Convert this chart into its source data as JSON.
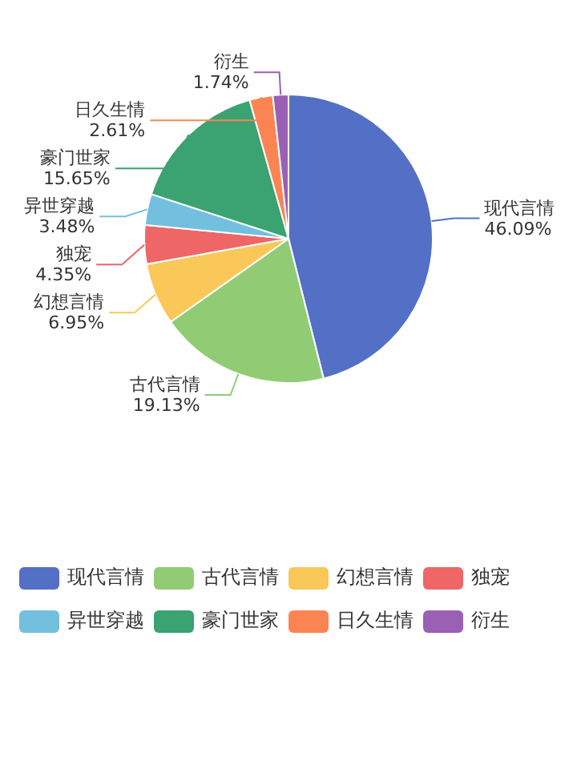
{
  "chart_data": {
    "type": "pie",
    "categories": [
      "现代言情",
      "古代言情",
      "幻想言情",
      "独宠",
      "异世穿越",
      "豪门世家",
      "日久生情",
      "衍生"
    ],
    "values": [
      46.09,
      19.13,
      6.95,
      4.35,
      3.48,
      15.65,
      2.61,
      1.74
    ],
    "colors": [
      "#5470c6",
      "#91cc75",
      "#fac858",
      "#ee6666",
      "#73c0de",
      "#3ba272",
      "#fc8452",
      "#9a60b4"
    ],
    "value_labels": [
      "46.09%",
      "19.13%",
      "6.95%",
      "4.35%",
      "3.48%",
      "15.65%",
      "2.61%",
      "1.74%"
    ],
    "legend": "bottom"
  }
}
